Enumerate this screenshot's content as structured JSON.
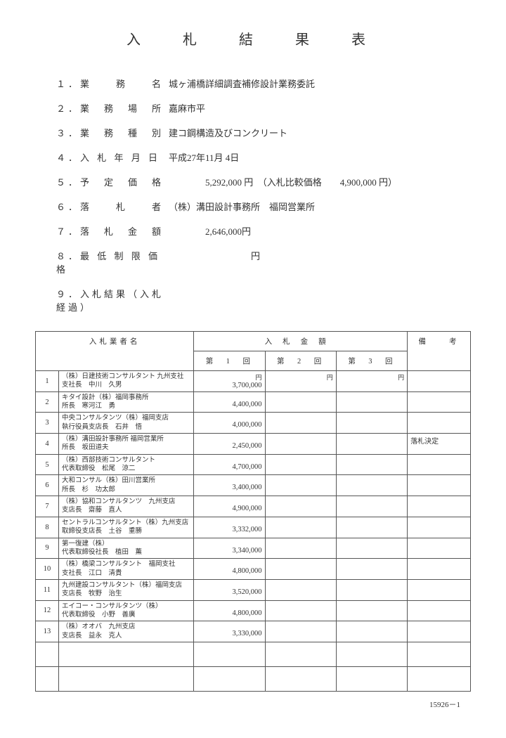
{
  "title": "入　札　結　果　表",
  "items": [
    {
      "num": "１．",
      "label": "業　　務　　名",
      "value": "城ヶ浦橋詳細調査補修設計業務委託"
    },
    {
      "num": "２．",
      "label": "業　務　場　所",
      "value": "嘉麻市平"
    },
    {
      "num": "３．",
      "label": "業　務　種　別",
      "value": "建コ鋼構造及びコンクリート"
    },
    {
      "num": "４．",
      "label": "入 札 年 月 日",
      "value": "平成27年11月 4日"
    },
    {
      "num": "５．",
      "label": "予　定　価　格",
      "value": "　　　　5,292,000 円　（入札比較価格　　4,900,000 円）"
    },
    {
      "num": "６．",
      "label": "落　　札　　者",
      "value": "（株）溝田設計事務所　福岡営業所"
    },
    {
      "num": "７．",
      "label": "落　札　金　額",
      "value": "　　　　2,646,000円"
    },
    {
      "num": "８．",
      "label": "最 低 制 限 価 格",
      "value": "　　　　　　　　　円"
    },
    {
      "num": "９．",
      "label": "入札結果（入札経過）",
      "value": ""
    }
  ],
  "table": {
    "header_bidder": "入札業者名",
    "header_amount": "入札金額",
    "header_note": "備　　考",
    "round1": "第　1　回",
    "round2": "第　2　回",
    "round3": "第　3　回",
    "yen": "円",
    "rows": [
      {
        "n": "1",
        "name": "（株）日建技術コンサルタント 九州支社\n支社長　中川　久男",
        "amt": "3,700,000",
        "note": ""
      },
      {
        "n": "2",
        "name": "キタイ設計（株）福岡事務所\n所長　寒河江　勇",
        "amt": "4,400,000",
        "note": ""
      },
      {
        "n": "3",
        "name": "中央コンサルタンツ（株）福岡支店\n執行役員支店長　石井　悟",
        "amt": "4,000,000",
        "note": ""
      },
      {
        "n": "4",
        "name": "（株）溝田設計事務所 福岡営業所\n所長　坂田道夫",
        "amt": "2,450,000",
        "note": "落札決定"
      },
      {
        "n": "5",
        "name": "（株）西部技術コンサルタント\n代表取締役　松尾　涼二",
        "amt": "4,700,000",
        "note": ""
      },
      {
        "n": "6",
        "name": "大和コンサル（株）田川営業所\n所長　杉　功太郎",
        "amt": "3,400,000",
        "note": ""
      },
      {
        "n": "7",
        "name": "（株）協和コンサルタンツ　九州支店\n支店長　齋藤　直人",
        "amt": "4,900,000",
        "note": ""
      },
      {
        "n": "8",
        "name": "セントラルコンサルタント（株）九州支店\n取締役支店長　土谷　重勝",
        "amt": "3,332,000",
        "note": ""
      },
      {
        "n": "9",
        "name": "第一復建（株）\n代表取締役社長　植田　薫",
        "amt": "3,340,000",
        "note": ""
      },
      {
        "n": "10",
        "name": "（株）橋梁コンサルタント　福岡支社\n支社長　江口　清貴",
        "amt": "4,800,000",
        "note": ""
      },
      {
        "n": "11",
        "name": "九州建設コンサルタント（株）福岡支店\n支店長　牧野　治生",
        "amt": "3,520,000",
        "note": ""
      },
      {
        "n": "12",
        "name": "エイコー・コンサルタンツ（株）\n代表取締役　小野　善廣",
        "amt": "4,800,000",
        "note": ""
      },
      {
        "n": "13",
        "name": "（株）オオバ　九州支店\n支店長　益永　克人",
        "amt": "3,330,000",
        "note": ""
      }
    ]
  },
  "page_number": "15926－1"
}
